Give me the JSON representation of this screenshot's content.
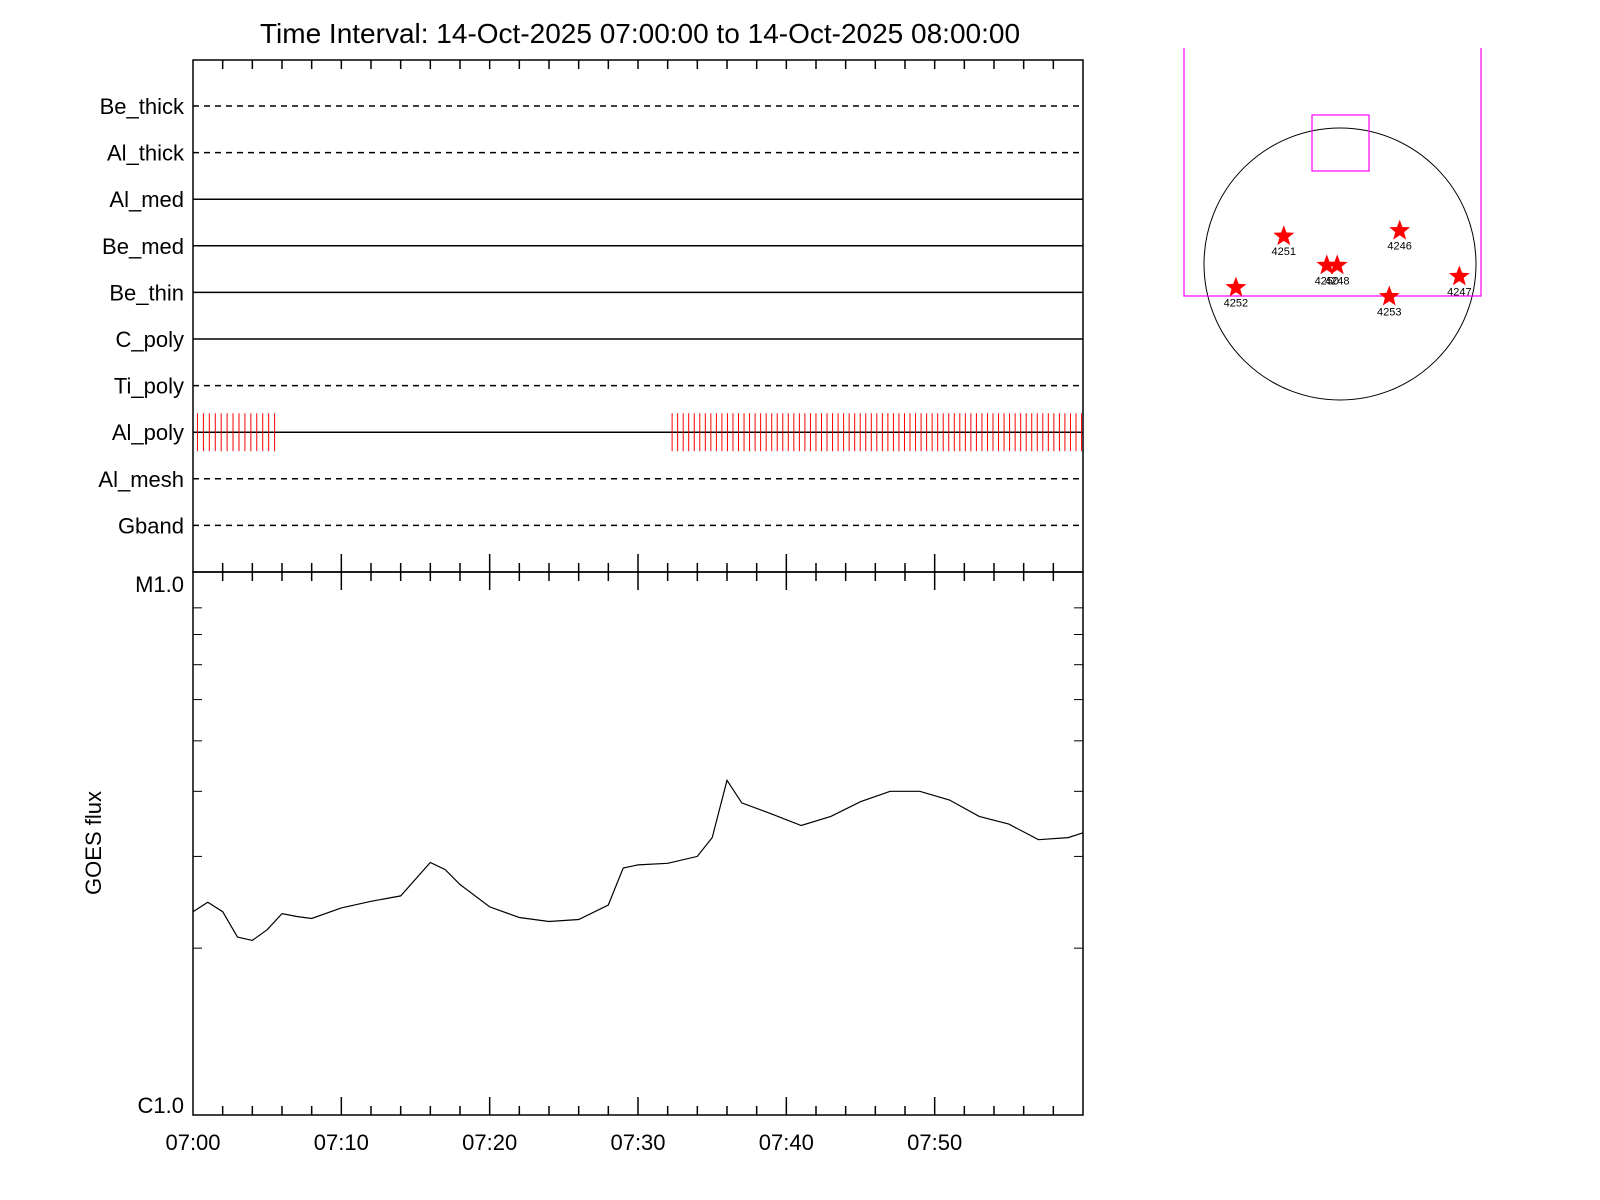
{
  "chart_data": [
    {
      "type": "timeline",
      "title": "Time Interval: 14-Oct-2025 07:00:00 to 14-Oct-2025 08:00:00",
      "xlim": [
        "07:00",
        "08:00"
      ],
      "x_ticks": [
        "07:00",
        "07:10",
        "07:20",
        "07:30",
        "07:40",
        "07:50"
      ],
      "channels": [
        {
          "name": "Be_thick",
          "style": "dashed"
        },
        {
          "name": "Al_thick",
          "style": "dashed"
        },
        {
          "name": "Al_med",
          "style": "solid"
        },
        {
          "name": "Be_med",
          "style": "solid"
        },
        {
          "name": "Be_thin",
          "style": "solid"
        },
        {
          "name": "C_poly",
          "style": "solid"
        },
        {
          "name": "Ti_poly",
          "style": "dashed"
        },
        {
          "name": "Al_poly",
          "style": "solid"
        },
        {
          "name": "Al_mesh",
          "style": "dashed"
        },
        {
          "name": "Gband",
          "style": "dashed"
        }
      ],
      "observations": {
        "channel": "Al_poly",
        "color": "#ff0000",
        "segments": [
          {
            "start_min": 0.3,
            "end_min": 5.5,
            "count": 14
          },
          {
            "start_min": 32.3,
            "end_min": 59.9,
            "count": 75
          }
        ]
      }
    },
    {
      "type": "line",
      "ylabel": "GOES flux",
      "y_scale": "log",
      "y_tick_labels": [
        "M1.0",
        "C1.0"
      ],
      "ylim": [
        1e-06,
        1e-05
      ],
      "x_unit": "minutes after 07:00",
      "x": [
        0,
        1,
        2,
        3,
        4,
        5,
        6,
        7,
        8,
        10,
        12,
        14,
        16,
        17,
        18,
        20,
        22,
        24,
        26,
        28,
        29,
        30,
        32,
        34,
        35,
        36,
        37,
        39,
        41,
        43,
        45,
        47,
        49,
        51,
        53,
        55,
        57,
        59,
        60
      ],
      "values": [
        2.35e-06,
        2.45e-06,
        2.35e-06,
        2.1e-06,
        2.07e-06,
        2.17e-06,
        2.33e-06,
        2.3e-06,
        2.28e-06,
        2.39e-06,
        2.46e-06,
        2.52e-06,
        2.92e-06,
        2.83e-06,
        2.65e-06,
        2.4e-06,
        2.29e-06,
        2.25e-06,
        2.27e-06,
        2.42e-06,
        2.85e-06,
        2.89e-06,
        2.91e-06,
        3e-06,
        3.26e-06,
        4.2e-06,
        3.8e-06,
        3.62e-06,
        3.44e-06,
        3.58e-06,
        3.82e-06,
        4e-06,
        4e-06,
        3.85e-06,
        3.58e-06,
        3.46e-06,
        3.23e-06,
        3.26e-06,
        3.33e-06
      ],
      "color": "#000000"
    },
    {
      "type": "scatter",
      "description_items": "active regions on solar disk",
      "regions": [
        {
          "label": "4246",
          "x": 430,
          "y": -240
        },
        {
          "label": "4247",
          "x": 860,
          "y": 90
        },
        {
          "label": "4248",
          "x": -20,
          "y": 10
        },
        {
          "label": "4250",
          "x": -95,
          "y": 10
        },
        {
          "label": "4251",
          "x": -405,
          "y": -200
        },
        {
          "label": "4252",
          "x": -750,
          "y": 170
        },
        {
          "label": "4253",
          "x": 355,
          "y": 235
        }
      ],
      "marker_color": "#ff0000",
      "box_color": "#ff00ff"
    }
  ]
}
